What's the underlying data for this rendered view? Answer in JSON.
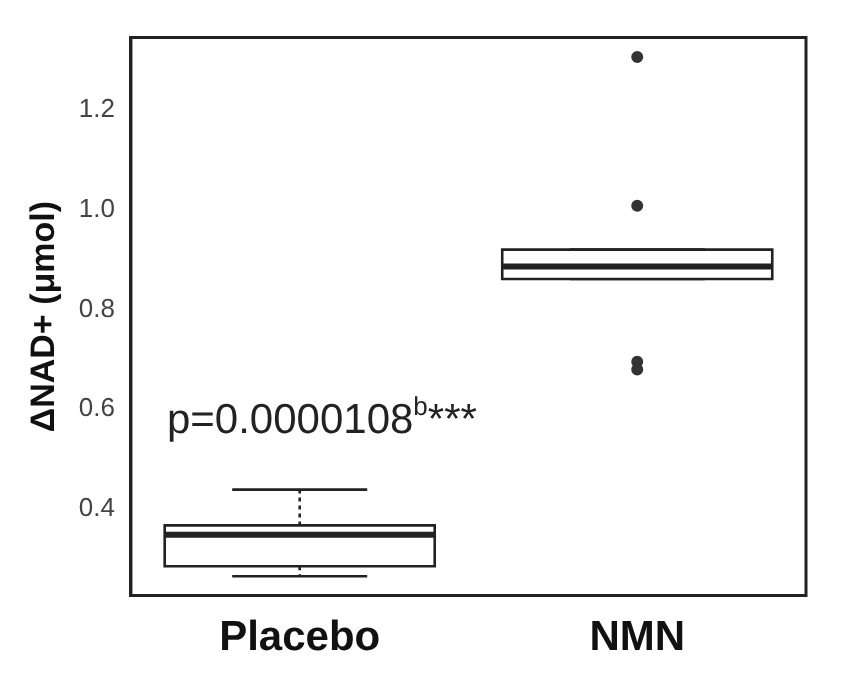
{
  "chart_data": {
    "type": "box",
    "categories": [
      "Placebo",
      "NMN"
    ],
    "boxes": [
      {
        "low": 0.264,
        "q1": 0.284,
        "median": 0.347,
        "q3": 0.366,
        "high": 0.438
      },
      {
        "low": 0.861,
        "q1": 0.861,
        "median": 0.886,
        "q3": 0.92,
        "high": 0.92,
        "outliers": [
          1.307,
          1.008,
          0.695,
          0.679
        ]
      }
    ],
    "ylabel": "ΔNAD+ (μmol)",
    "ylim": [
      0.225,
      1.346
    ],
    "yticks": [
      0.4,
      0.6,
      0.8,
      {
        "value": 1,
        "label": "1.0"
      },
      1.2
    ],
    "annotations": [
      "p=0.0000108$^{b}$***"
    ],
    "grid": false,
    "legend": false
  }
}
